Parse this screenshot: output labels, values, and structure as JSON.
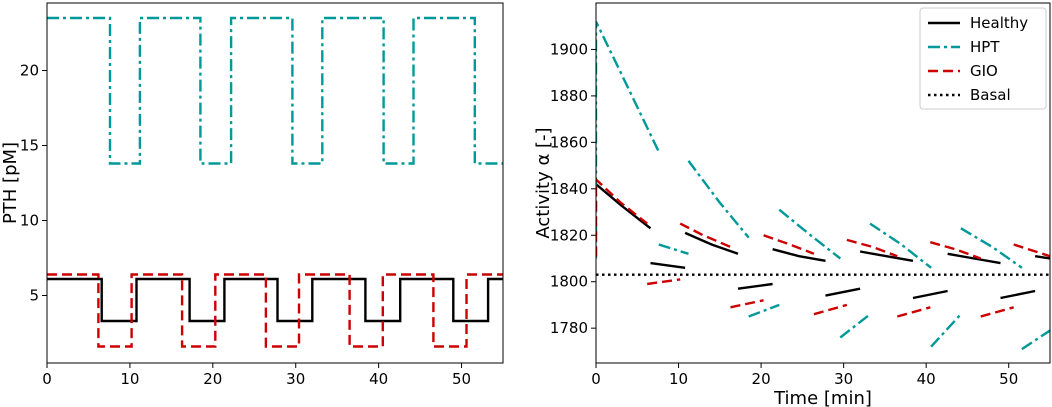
{
  "chart_data": [
    {
      "type": "line",
      "title": "",
      "xlabel": "",
      "ylabel": "PTH [pM]",
      "xlim": [
        0,
        55
      ],
      "ylim": [
        0.5,
        24.5
      ],
      "xticks": [
        0,
        10,
        20,
        30,
        40,
        50
      ],
      "yticks": [
        5,
        10,
        15,
        20
      ],
      "series": [
        {
          "name": "HPT",
          "color": "#009999",
          "dash": "dashdot",
          "x": [
            0,
            7.6,
            7.6,
            11.2,
            11.2,
            18.5,
            18.5,
            22.2,
            22.2,
            29.6,
            29.6,
            33.2,
            33.2,
            40.6,
            40.6,
            44.2,
            44.2,
            51.6,
            51.6,
            55
          ],
          "y": [
            23.5,
            23.5,
            13.8,
            13.8,
            23.5,
            23.5,
            13.8,
            13.8,
            23.5,
            23.5,
            13.8,
            13.8,
            23.5,
            23.5,
            13.8,
            13.8,
            23.5,
            23.5,
            13.8,
            13.8
          ]
        },
        {
          "name": "Healthy",
          "color": "#000000",
          "dash": "solid",
          "x": [
            0,
            6.6,
            6.6,
            10.8,
            10.8,
            17.2,
            17.2,
            21.4,
            21.4,
            27.8,
            27.8,
            32.0,
            32.0,
            38.4,
            38.4,
            42.6,
            42.6,
            49.0,
            49.0,
            53.2,
            53.2,
            55
          ],
          "y": [
            6.1,
            6.1,
            3.3,
            3.3,
            6.1,
            6.1,
            3.3,
            3.3,
            6.1,
            6.1,
            3.3,
            3.3,
            6.1,
            6.1,
            3.3,
            3.3,
            6.1,
            6.1,
            3.3,
            3.3,
            6.1,
            6.1
          ]
        },
        {
          "name": "GIO",
          "color": "#cc0000",
          "dash": "dashed",
          "x": [
            0,
            6.2,
            6.2,
            10.2,
            10.2,
            16.3,
            16.3,
            20.3,
            20.3,
            26.4,
            26.4,
            30.4,
            30.4,
            36.5,
            36.5,
            40.5,
            40.5,
            46.6,
            46.6,
            50.6,
            50.6,
            55
          ],
          "y": [
            6.4,
            6.4,
            1.6,
            1.6,
            6.4,
            6.4,
            1.6,
            1.6,
            6.4,
            6.4,
            1.6,
            1.6,
            6.4,
            6.4,
            1.6,
            1.6,
            6.4,
            6.4,
            1.6,
            1.6,
            6.4,
            6.4
          ]
        }
      ]
    },
    {
      "type": "line",
      "title": "",
      "xlabel": "Time [min]",
      "ylabel": "Activity α [-]",
      "xlim": [
        0,
        55
      ],
      "ylim": [
        1765,
        1920
      ],
      "xticks": [
        0,
        10,
        20,
        30,
        40,
        50
      ],
      "yticks": [
        1780,
        1800,
        1820,
        1840,
        1860,
        1880,
        1900
      ],
      "legend": "top-right",
      "series": [
        {
          "name": "Healthy",
          "color": "#000000",
          "dash": "solid",
          "segments": [
            [
              [
                0,
                1842
              ],
              [
                3,
                1833
              ],
              [
                6.6,
                1823
              ]
            ],
            [
              [
                6.6,
                1808
              ],
              [
                10.8,
                1806
              ]
            ],
            [
              [
                10.8,
                1821
              ],
              [
                14,
                1816
              ],
              [
                17.2,
                1812
              ]
            ],
            [
              [
                17.2,
                1797
              ],
              [
                21.4,
                1799
              ]
            ],
            [
              [
                21.4,
                1814
              ],
              [
                24.6,
                1811
              ],
              [
                27.8,
                1809
              ]
            ],
            [
              [
                27.8,
                1794
              ],
              [
                32.0,
                1797
              ]
            ],
            [
              [
                32.0,
                1813
              ],
              [
                35.2,
                1811
              ],
              [
                38.4,
                1809
              ]
            ],
            [
              [
                38.4,
                1793
              ],
              [
                42.6,
                1796
              ]
            ],
            [
              [
                42.6,
                1812
              ],
              [
                45.8,
                1810
              ],
              [
                49.0,
                1808
              ]
            ],
            [
              [
                49.0,
                1793
              ],
              [
                53.2,
                1796
              ]
            ],
            [
              [
                53.2,
                1811
              ],
              [
                55,
                1810
              ]
            ]
          ]
        },
        {
          "name": "HPT",
          "color": "#009999",
          "dash": "dashdot",
          "segments": [
            [
              [
                0,
                1810
              ],
              [
                0,
                1912
              ],
              [
                3,
                1890
              ],
              [
                7.6,
                1856
              ]
            ],
            [
              [
                7.6,
                1816
              ],
              [
                11.2,
                1812
              ]
            ],
            [
              [
                11.2,
                1852
              ],
              [
                15,
                1834
              ],
              [
                18.5,
                1819
              ]
            ],
            [
              [
                18.5,
                1785
              ],
              [
                22.2,
                1790
              ]
            ],
            [
              [
                22.2,
                1831
              ],
              [
                26,
                1820
              ],
              [
                29.6,
                1810
              ]
            ],
            [
              [
                29.6,
                1776
              ],
              [
                33.2,
                1786
              ]
            ],
            [
              [
                33.2,
                1825
              ],
              [
                37,
                1816
              ],
              [
                40.6,
                1806
              ]
            ],
            [
              [
                40.6,
                1772
              ],
              [
                44.2,
                1786
              ]
            ],
            [
              [
                44.2,
                1823
              ],
              [
                48,
                1815
              ],
              [
                51.6,
                1806
              ]
            ],
            [
              [
                51.6,
                1771
              ],
              [
                55,
                1779
              ]
            ]
          ]
        },
        {
          "name": "GIO",
          "color": "#cc0000",
          "dash": "dashed",
          "segments": [
            [
              [
                0,
                1811
              ],
              [
                0,
                1844
              ],
              [
                3,
                1834
              ],
              [
                6.2,
                1825
              ]
            ],
            [
              [
                6.2,
                1799
              ],
              [
                10.2,
                1801
              ]
            ],
            [
              [
                10.2,
                1825
              ],
              [
                13,
                1820
              ],
              [
                16.3,
                1815
              ]
            ],
            [
              [
                16.3,
                1789
              ],
              [
                20.3,
                1792
              ]
            ],
            [
              [
                20.3,
                1820
              ],
              [
                23.5,
                1816
              ],
              [
                26.4,
                1812
              ]
            ],
            [
              [
                26.4,
                1786
              ],
              [
                30.4,
                1790
              ]
            ],
            [
              [
                30.4,
                1818
              ],
              [
                33.5,
                1815
              ],
              [
                36.5,
                1811
              ]
            ],
            [
              [
                36.5,
                1785
              ],
              [
                40.5,
                1789
              ]
            ],
            [
              [
                40.5,
                1817
              ],
              [
                43.5,
                1814
              ],
              [
                46.6,
                1810
              ]
            ],
            [
              [
                46.6,
                1785
              ],
              [
                50.6,
                1789
              ]
            ],
            [
              [
                50.6,
                1816
              ],
              [
                55,
                1811
              ]
            ]
          ]
        },
        {
          "name": "Basal",
          "color": "#000000",
          "dash": "dotted",
          "segments": [
            [
              [
                0,
                1803
              ],
              [
                55,
                1803
              ]
            ]
          ]
        }
      ]
    }
  ]
}
